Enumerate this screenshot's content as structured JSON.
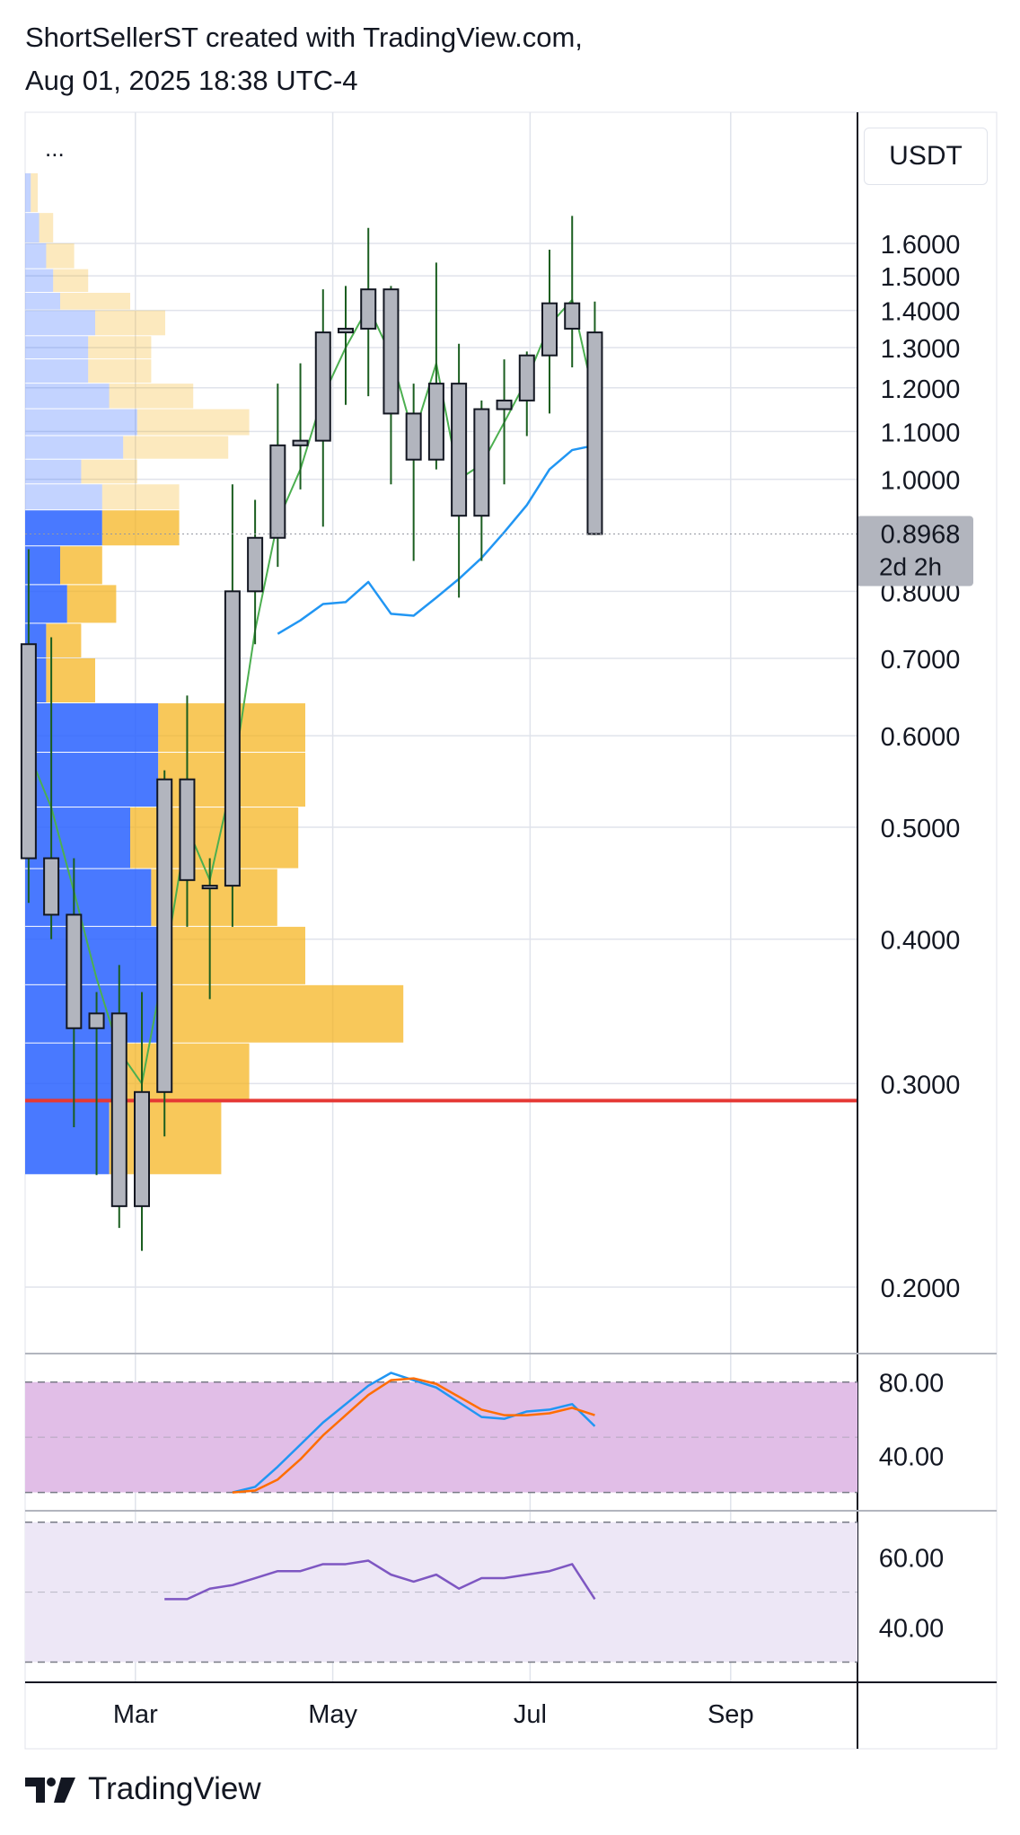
{
  "header": {
    "line1": "ShortSellerST created with TradingView.com,",
    "line2": "Aug 01, 2025 18:38 UTC-4"
  },
  "menu_dots": "...",
  "currency": "USDT",
  "footer": {
    "brand": "TradingView"
  },
  "colors": {
    "candle_fill": "#b2b5be",
    "candle_border": "#131722",
    "wick": "#1b5e20",
    "ema_fast": "#4caf50",
    "ema_slow": "#2196f3",
    "support_line": "#e53935",
    "vp_up": "#2962ff",
    "vp_down": "#f5b014",
    "stoch_k": "#2196f3",
    "stoch_d": "#ff6d00",
    "stoch_bg": "#e1bee7",
    "rsi_line": "#7e57c2",
    "rsi_bg": "#ede7f6"
  },
  "chart_data": [
    {
      "type": "candlestick",
      "title": "",
      "ylabel": "USDT",
      "yscale": "log",
      "ylim": [
        0.17,
        1.85
      ],
      "y_ticks": [
        0.2,
        0.3,
        0.4,
        0.5,
        0.6,
        0.7,
        0.8,
        1.0,
        1.1,
        1.2,
        1.3,
        1.4,
        1.5,
        1.6
      ],
      "y_tick_labels": [
        "0.2000",
        "0.3000",
        "0.4000",
        "0.5000",
        "0.6000",
        "0.7000",
        "0.8000",
        "1.0000",
        "1.1000",
        "1.2000",
        "1.3000",
        "1.4000",
        "1.5000",
        "1.6000"
      ],
      "x_tick_labels": [
        "Mar",
        "May",
        "Jul",
        "Sep"
      ],
      "x_tick_dates": [
        "2025-03-01",
        "2025-05-01",
        "2025-07-01",
        "2025-09-01"
      ],
      "last_price": "0.8968",
      "countdown": "2d 2h",
      "support_level": 0.29,
      "candles": [
        {
          "date": "2025-01-27",
          "o": 0.72,
          "h": 0.87,
          "l": 0.43,
          "c": 0.47
        },
        {
          "date": "2025-02-03",
          "o": 0.47,
          "h": 0.73,
          "l": 0.4,
          "c": 0.42
        },
        {
          "date": "2025-02-10",
          "o": 0.42,
          "h": 0.47,
          "l": 0.275,
          "c": 0.335
        },
        {
          "date": "2025-02-17",
          "o": 0.335,
          "h": 0.36,
          "l": 0.25,
          "c": 0.345
        },
        {
          "date": "2025-02-24",
          "o": 0.345,
          "h": 0.38,
          "l": 0.225,
          "c": 0.235
        },
        {
          "date": "2025-03-03",
          "o": 0.235,
          "h": 0.36,
          "l": 0.215,
          "c": 0.295
        },
        {
          "date": "2025-03-10",
          "o": 0.295,
          "h": 0.56,
          "l": 0.27,
          "c": 0.55
        },
        {
          "date": "2025-03-17",
          "o": 0.55,
          "h": 0.65,
          "l": 0.41,
          "c": 0.45
        },
        {
          "date": "2025-03-24",
          "o": 0.445,
          "h": 0.47,
          "l": 0.355,
          "c": 0.445
        },
        {
          "date": "2025-03-31",
          "o": 0.445,
          "h": 0.99,
          "l": 0.41,
          "c": 0.8
        },
        {
          "date": "2025-04-07",
          "o": 0.8,
          "h": 0.96,
          "l": 0.72,
          "c": 0.89
        },
        {
          "date": "2025-04-14",
          "o": 0.89,
          "h": 1.21,
          "l": 0.84,
          "c": 1.07
        },
        {
          "date": "2025-04-21",
          "o": 1.07,
          "h": 1.26,
          "l": 0.98,
          "c": 1.08
        },
        {
          "date": "2025-04-28",
          "o": 1.08,
          "h": 1.46,
          "l": 0.91,
          "c": 1.34
        },
        {
          "date": "2025-05-05",
          "o": 1.34,
          "h": 1.47,
          "l": 1.16,
          "c": 1.35
        },
        {
          "date": "2025-05-12",
          "o": 1.35,
          "h": 1.65,
          "l": 1.18,
          "c": 1.46
        },
        {
          "date": "2025-05-19",
          "o": 1.46,
          "h": 1.47,
          "l": 0.99,
          "c": 1.14
        },
        {
          "date": "2025-05-26",
          "o": 1.14,
          "h": 1.21,
          "l": 0.85,
          "c": 1.04
        },
        {
          "date": "2025-06-02",
          "o": 1.04,
          "h": 1.54,
          "l": 1.02,
          "c": 1.21
        },
        {
          "date": "2025-06-09",
          "o": 1.21,
          "h": 1.31,
          "l": 0.79,
          "c": 0.93
        },
        {
          "date": "2025-06-16",
          "o": 0.93,
          "h": 1.17,
          "l": 0.85,
          "c": 1.15
        },
        {
          "date": "2025-06-23",
          "o": 1.15,
          "h": 1.27,
          "l": 0.99,
          "c": 1.17
        },
        {
          "date": "2025-06-30",
          "o": 1.17,
          "h": 1.29,
          "l": 1.09,
          "c": 1.28
        },
        {
          "date": "2025-07-07",
          "o": 1.28,
          "h": 1.58,
          "l": 1.14,
          "c": 1.42
        },
        {
          "date": "2025-07-14",
          "o": 1.42,
          "h": 1.69,
          "l": 1.25,
          "c": 1.35
        },
        {
          "date": "2025-07-21",
          "o": 1.34,
          "h": 1.425,
          "l": 0.895,
          "c": 0.8968
        }
      ],
      "ema_fast": [
        {
          "date": "2025-01-27",
          "v": 0.58
        },
        {
          "date": "2025-02-03",
          "v": 0.52
        },
        {
          "date": "2025-02-10",
          "v": 0.44
        },
        {
          "date": "2025-02-17",
          "v": 0.37
        },
        {
          "date": "2025-02-24",
          "v": 0.32
        },
        {
          "date": "2025-03-03",
          "v": 0.3
        },
        {
          "date": "2025-03-10",
          "v": 0.38
        },
        {
          "date": "2025-03-17",
          "v": 0.5
        },
        {
          "date": "2025-03-24",
          "v": 0.45
        },
        {
          "date": "2025-03-31",
          "v": 0.55
        },
        {
          "date": "2025-04-07",
          "v": 0.74
        },
        {
          "date": "2025-04-14",
          "v": 0.92
        },
        {
          "date": "2025-04-21",
          "v": 1.02
        },
        {
          "date": "2025-04-28",
          "v": 1.18
        },
        {
          "date": "2025-05-05",
          "v": 1.3
        },
        {
          "date": "2025-05-12",
          "v": 1.41
        },
        {
          "date": "2025-05-19",
          "v": 1.28
        },
        {
          "date": "2025-05-26",
          "v": 1.09
        },
        {
          "date": "2025-06-02",
          "v": 1.26
        },
        {
          "date": "2025-06-09",
          "v": 1.0
        },
        {
          "date": "2025-06-16",
          "v": 1.03
        },
        {
          "date": "2025-06-23",
          "v": 1.12
        },
        {
          "date": "2025-06-30",
          "v": 1.22
        },
        {
          "date": "2025-07-07",
          "v": 1.36
        },
        {
          "date": "2025-07-14",
          "v": 1.43
        },
        {
          "date": "2025-07-21",
          "v": 1.17
        }
      ],
      "ema_slow": [
        {
          "date": "2025-04-14",
          "v": 0.735
        },
        {
          "date": "2025-04-21",
          "v": 0.755
        },
        {
          "date": "2025-04-28",
          "v": 0.78
        },
        {
          "date": "2025-05-05",
          "v": 0.783
        },
        {
          "date": "2025-05-12",
          "v": 0.815
        },
        {
          "date": "2025-05-19",
          "v": 0.765
        },
        {
          "date": "2025-05-26",
          "v": 0.762
        },
        {
          "date": "2025-06-02",
          "v": 0.79
        },
        {
          "date": "2025-06-09",
          "v": 0.82
        },
        {
          "date": "2025-06-16",
          "v": 0.855
        },
        {
          "date": "2025-06-23",
          "v": 0.9
        },
        {
          "date": "2025-06-30",
          "v": 0.95
        },
        {
          "date": "2025-07-07",
          "v": 1.02
        },
        {
          "date": "2025-07-14",
          "v": 1.06
        },
        {
          "date": "2025-07-21",
          "v": 1.07
        }
      ],
      "volume_profile": [
        {
          "lo": 1.7,
          "hi": 1.84,
          "up": 0.004,
          "down": 0.005
        },
        {
          "lo": 1.6,
          "hi": 1.7,
          "up": 0.01,
          "down": 0.01
        },
        {
          "lo": 1.52,
          "hi": 1.6,
          "up": 0.015,
          "down": 0.02
        },
        {
          "lo": 1.45,
          "hi": 1.52,
          "up": 0.02,
          "down": 0.025
        },
        {
          "lo": 1.4,
          "hi": 1.45,
          "up": 0.025,
          "down": 0.05
        },
        {
          "lo": 1.33,
          "hi": 1.4,
          "up": 0.05,
          "down": 0.05
        },
        {
          "lo": 1.27,
          "hi": 1.33,
          "up": 0.045,
          "down": 0.045
        },
        {
          "lo": 1.21,
          "hi": 1.27,
          "up": 0.045,
          "down": 0.045
        },
        {
          "lo": 1.15,
          "hi": 1.21,
          "up": 0.06,
          "down": 0.06
        },
        {
          "lo": 1.09,
          "hi": 1.15,
          "up": 0.08,
          "down": 0.08
        },
        {
          "lo": 1.04,
          "hi": 1.09,
          "up": 0.07,
          "down": 0.075
        },
        {
          "lo": 0.99,
          "hi": 1.04,
          "up": 0.04,
          "down": 0.04
        },
        {
          "lo": 0.94,
          "hi": 0.99,
          "up": 0.055,
          "down": 0.055
        },
        {
          "lo": 0.875,
          "hi": 0.94,
          "up": 0.055,
          "down": 0.055
        },
        {
          "lo": 0.81,
          "hi": 0.875,
          "up": 0.025,
          "down": 0.03
        },
        {
          "lo": 0.75,
          "hi": 0.81,
          "up": 0.03,
          "down": 0.035
        },
        {
          "lo": 0.7,
          "hi": 0.75,
          "up": 0.015,
          "down": 0.025
        },
        {
          "lo": 0.64,
          "hi": 0.7,
          "up": 0.015,
          "down": 0.035
        },
        {
          "lo": 0.58,
          "hi": 0.64,
          "up": 0.095,
          "down": 0.105
        },
        {
          "lo": 0.52,
          "hi": 0.58,
          "up": 0.095,
          "down": 0.105
        },
        {
          "lo": 0.46,
          "hi": 0.52,
          "up": 0.075,
          "down": 0.12
        },
        {
          "lo": 0.41,
          "hi": 0.46,
          "up": 0.09,
          "down": 0.09
        },
        {
          "lo": 0.365,
          "hi": 0.41,
          "up": 0.105,
          "down": 0.095
        },
        {
          "lo": 0.325,
          "hi": 0.365,
          "up": 0.095,
          "down": 0.175
        },
        {
          "lo": 0.29,
          "hi": 0.325,
          "up": 0.065,
          "down": 0.095
        },
        {
          "lo": 0.25,
          "hi": 0.29,
          "up": 0.06,
          "down": 0.08
        }
      ]
    },
    {
      "type": "line",
      "title": "",
      "ylim": [
        11,
        95
      ],
      "y_tick_labels": [
        "80.00",
        "40.00"
      ],
      "y_ticks": [
        80,
        40
      ],
      "band": [
        20,
        80
      ],
      "series": [
        {
          "color": "#2196f3",
          "values": [
            {
              "date": "2025-03-31",
              "v": 20
            },
            {
              "date": "2025-04-07",
              "v": 23
            },
            {
              "date": "2025-04-14",
              "v": 34
            },
            {
              "date": "2025-04-21",
              "v": 46
            },
            {
              "date": "2025-04-28",
              "v": 58
            },
            {
              "date": "2025-05-05",
              "v": 68
            },
            {
              "date": "2025-05-12",
              "v": 78
            },
            {
              "date": "2025-05-19",
              "v": 85
            },
            {
              "date": "2025-05-26",
              "v": 81
            },
            {
              "date": "2025-06-02",
              "v": 77
            },
            {
              "date": "2025-06-09",
              "v": 69
            },
            {
              "date": "2025-06-16",
              "v": 61
            },
            {
              "date": "2025-06-23",
              "v": 60
            },
            {
              "date": "2025-06-30",
              "v": 64
            },
            {
              "date": "2025-07-07",
              "v": 65
            },
            {
              "date": "2025-07-14",
              "v": 68
            },
            {
              "date": "2025-07-21",
              "v": 56
            }
          ]
        },
        {
          "color": "#ff6d00",
          "values": [
            {
              "date": "2025-03-31",
              "v": 20
            },
            {
              "date": "2025-04-07",
              "v": 21
            },
            {
              "date": "2025-04-14",
              "v": 27
            },
            {
              "date": "2025-04-21",
              "v": 38
            },
            {
              "date": "2025-04-28",
              "v": 51
            },
            {
              "date": "2025-05-05",
              "v": 62
            },
            {
              "date": "2025-05-12",
              "v": 73
            },
            {
              "date": "2025-05-19",
              "v": 81
            },
            {
              "date": "2025-05-26",
              "v": 82
            },
            {
              "date": "2025-06-02",
              "v": 79
            },
            {
              "date": "2025-06-09",
              "v": 72
            },
            {
              "date": "2025-06-16",
              "v": 65
            },
            {
              "date": "2025-06-23",
              "v": 62
            },
            {
              "date": "2025-06-30",
              "v": 62
            },
            {
              "date": "2025-07-07",
              "v": 63
            },
            {
              "date": "2025-07-14",
              "v": 66
            },
            {
              "date": "2025-07-21",
              "v": 62
            }
          ]
        }
      ]
    },
    {
      "type": "line",
      "title": "",
      "ylim": [
        25,
        73
      ],
      "y_tick_labels": [
        "60.00",
        "40.00"
      ],
      "y_ticks": [
        60,
        40
      ],
      "band": [
        30,
        70
      ],
      "series": [
        {
          "color": "#7e57c2",
          "values": [
            {
              "date": "2025-03-10",
              "v": 48
            },
            {
              "date": "2025-03-17",
              "v": 48
            },
            {
              "date": "2025-03-24",
              "v": 51
            },
            {
              "date": "2025-03-31",
              "v": 52
            },
            {
              "date": "2025-04-07",
              "v": 54
            },
            {
              "date": "2025-04-14",
              "v": 56
            },
            {
              "date": "2025-04-21",
              "v": 56
            },
            {
              "date": "2025-04-28",
              "v": 58
            },
            {
              "date": "2025-05-05",
              "v": 58
            },
            {
              "date": "2025-05-12",
              "v": 59
            },
            {
              "date": "2025-05-19",
              "v": 55
            },
            {
              "date": "2025-05-26",
              "v": 53
            },
            {
              "date": "2025-06-02",
              "v": 55
            },
            {
              "date": "2025-06-09",
              "v": 51
            },
            {
              "date": "2025-06-16",
              "v": 54
            },
            {
              "date": "2025-06-23",
              "v": 54
            },
            {
              "date": "2025-06-30",
              "v": 55
            },
            {
              "date": "2025-07-07",
              "v": 56
            },
            {
              "date": "2025-07-14",
              "v": 58
            },
            {
              "date": "2025-07-21",
              "v": 48
            }
          ]
        }
      ]
    }
  ]
}
